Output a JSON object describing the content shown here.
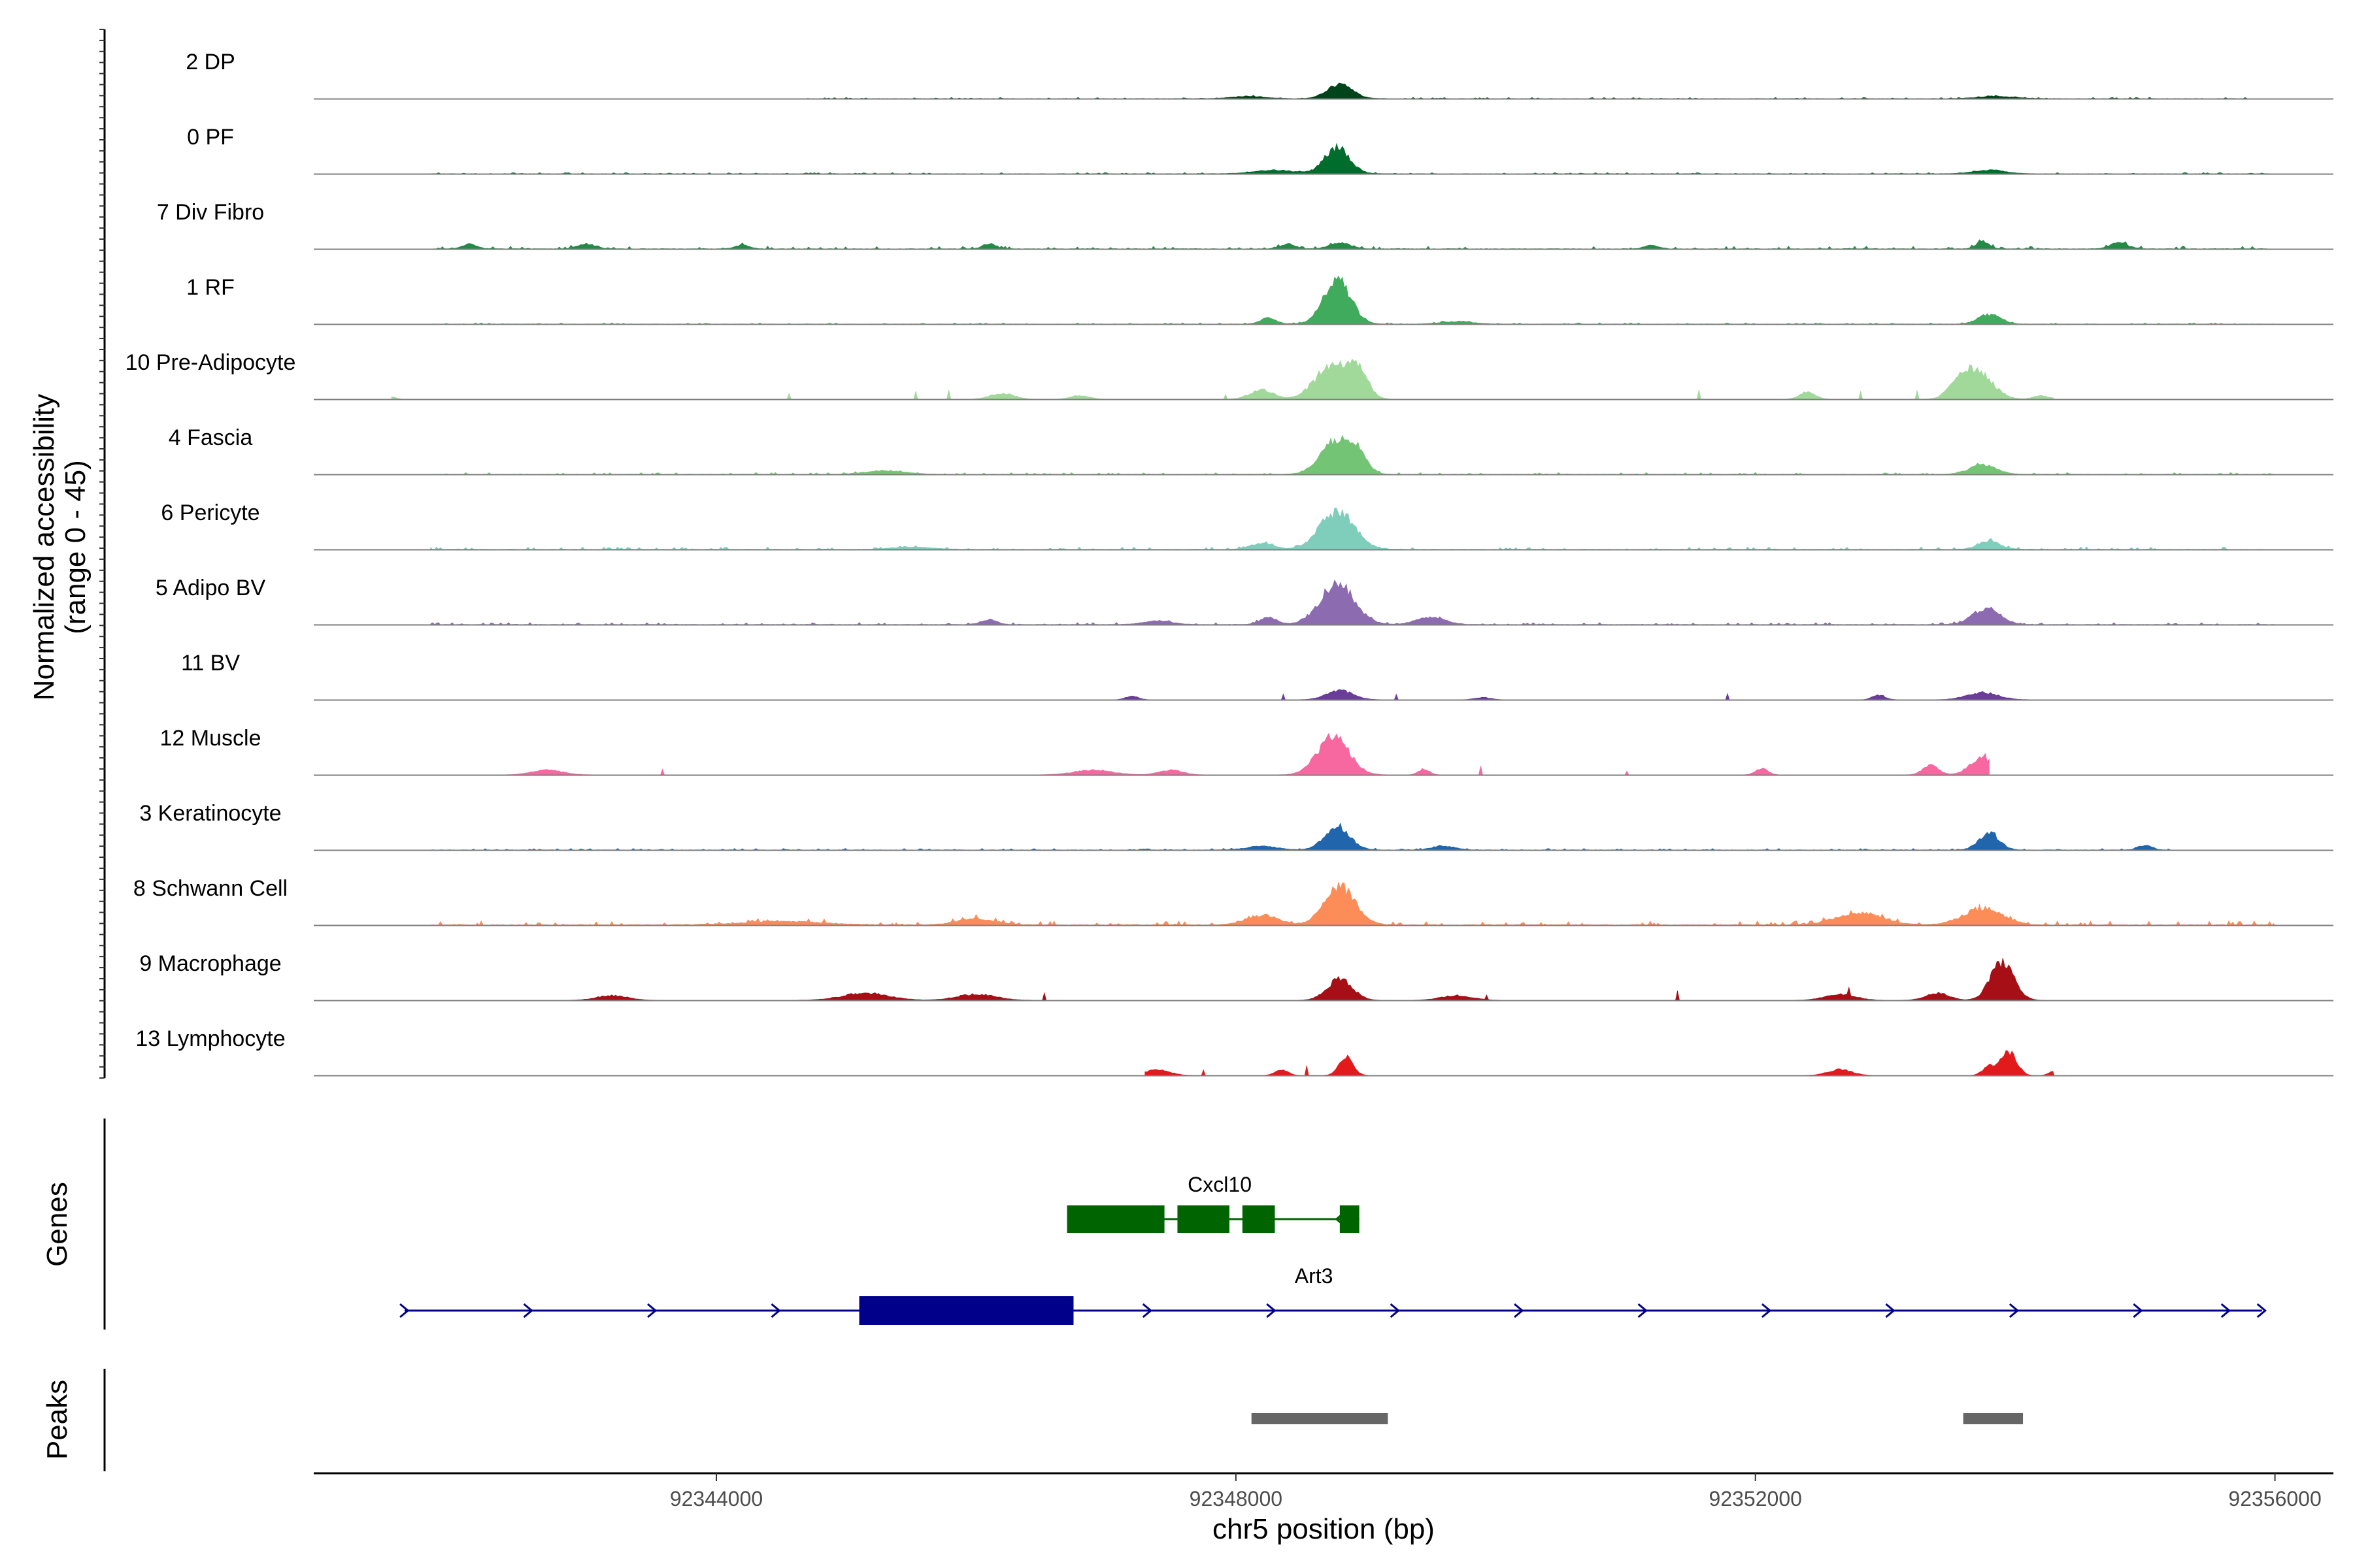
{
  "chart_data": {
    "type": "area",
    "xlabel": "chr5 position (bp)",
    "ylabel": "Normalized accessibility\n(range 0 - 45)",
    "ylabel_lines": [
      "Normalized accessibility",
      "(range 0 - 45)"
    ],
    "ylim": [
      0,
      45
    ],
    "xlim": [
      92340900,
      92356450
    ],
    "x_ticks": [
      92344000,
      92348000,
      92352000,
      92356000
    ],
    "x_tick_labels": [
      "92344000",
      "92348000",
      "92352000",
      "92356000"
    ],
    "panel_labels": {
      "genes": "Genes",
      "peaks": "Peaks"
    },
    "series": [
      {
        "name": "2 DP",
        "color": "#00441b",
        "peaks": [
          [
            92348800,
            12,
            160
          ],
          [
            92348100,
            2,
            200
          ],
          [
            92353850,
            2,
            220
          ]
        ],
        "extent": [
          92344700,
          92355800
        ],
        "sparse": false,
        "noise": 0.4
      },
      {
        "name": "0 PF",
        "color": "#006d2c",
        "peaks": [
          [
            92348780,
            22,
            160
          ],
          [
            92348300,
            3,
            250
          ],
          [
            92353800,
            3,
            200
          ]
        ],
        "extent": [
          92341800,
          92356000
        ],
        "sparse": false,
        "noise": 0.4
      },
      {
        "name": "7 Div Fibro",
        "color": "#238b45",
        "peaks": [
          [
            92342100,
            4,
            90
          ],
          [
            92343000,
            4,
            110
          ],
          [
            92344200,
            3,
            90
          ],
          [
            92346100,
            4,
            80
          ],
          [
            92348400,
            4,
            90
          ],
          [
            92348800,
            5,
            130
          ],
          [
            92353750,
            6,
            80
          ],
          [
            92354800,
            5,
            110
          ],
          [
            92351200,
            3,
            90
          ]
        ],
        "extent": [
          92341800,
          92355950
        ],
        "sparse": false,
        "noise": 0.9
      },
      {
        "name": "1 RF",
        "color": "#41ab5d",
        "peaks": [
          [
            92348780,
            38,
            170
          ],
          [
            92348250,
            5,
            100
          ],
          [
            92353800,
            8,
            140
          ],
          [
            92349700,
            2,
            200
          ]
        ],
        "extent": [
          92341800,
          92356000
        ],
        "sparse": false,
        "noise": 0.4
      },
      {
        "name": "10 Pre-Adipocyte",
        "color": "#a1d99b",
        "peaks": [
          [
            92348750,
            30,
            220
          ],
          [
            92348950,
            20,
            120
          ],
          [
            92348200,
            8,
            150
          ],
          [
            92353700,
            24,
            200
          ],
          [
            92353550,
            8,
            120
          ],
          [
            92352400,
            6,
            100
          ],
          [
            92346200,
            5,
            150
          ],
          [
            92346800,
            3,
            120
          ],
          [
            92354200,
            3,
            100
          ],
          [
            92341500,
            2,
            60
          ]
        ],
        "extent": [
          92341500,
          92354300
        ],
        "sparse": true,
        "noise": 1.5
      },
      {
        "name": "4 Fascia",
        "color": "#74c476",
        "peaks": [
          [
            92348780,
            30,
            200
          ],
          [
            92348950,
            12,
            100
          ],
          [
            92353750,
            8,
            170
          ],
          [
            92345300,
            3,
            250
          ]
        ],
        "extent": [
          92341800,
          92356000
        ],
        "sparse": false,
        "noise": 0.6
      },
      {
        "name": "6 Pericyte",
        "color": "#7fcdbb",
        "peaks": [
          [
            92348780,
            32,
            220
          ],
          [
            92348200,
            5,
            150
          ],
          [
            92353800,
            7,
            140
          ],
          [
            92345500,
            2,
            250
          ]
        ],
        "extent": [
          92341800,
          92356000
        ],
        "sparse": false,
        "noise": 0.8
      },
      {
        "name": "5 Adipo BV",
        "color": "#8c6bb1",
        "peaks": [
          [
            92348780,
            34,
            220
          ],
          [
            92348250,
            6,
            110
          ],
          [
            92349500,
            6,
            180
          ],
          [
            92353780,
            14,
            170
          ],
          [
            92346100,
            4,
            100
          ],
          [
            92347400,
            3,
            180
          ]
        ],
        "extent": [
          92341800,
          92356000
        ],
        "sparse": false,
        "noise": 0.7
      },
      {
        "name": "11 BV",
        "color": "#6a3d9a",
        "peaks": [
          [
            92348800,
            8,
            170
          ],
          [
            92353750,
            6,
            200
          ],
          [
            92352950,
            4,
            80
          ],
          [
            92347200,
            3,
            80
          ],
          [
            92349900,
            2,
            100
          ]
        ],
        "extent": [
          92347000,
          92354200
        ],
        "sparse": true,
        "noise": 1.0
      },
      {
        "name": "12 Muscle",
        "color": "#f768a1",
        "peaks": [
          [
            92348750,
            32,
            200
          ],
          [
            92349450,
            5,
            70
          ],
          [
            92353750,
            14,
            160
          ],
          [
            92353350,
            8,
            100
          ],
          [
            92352050,
            5,
            80
          ],
          [
            92346900,
            4,
            250
          ],
          [
            92342700,
            4,
            200
          ],
          [
            92347500,
            4,
            150
          ]
        ],
        "extent": [
          92341500,
          92353800
        ],
        "sparse": true,
        "noise": 1.3
      },
      {
        "name": "3 Keratinocyte",
        "color": "#2166ac",
        "peaks": [
          [
            92348780,
            20,
            160
          ],
          [
            92353800,
            14,
            130
          ],
          [
            92355000,
            4,
            90
          ],
          [
            92349600,
            3,
            150
          ],
          [
            92348200,
            3,
            200
          ]
        ],
        "extent": [
          92341800,
          92355200
        ],
        "sparse": false,
        "noise": 0.5
      },
      {
        "name": "8 Schwann Cell",
        "color": "#fc8d59",
        "peaks": [
          [
            92348800,
            32,
            200
          ],
          [
            92353750,
            14,
            250
          ],
          [
            92352800,
            10,
            300
          ],
          [
            92348200,
            8,
            200
          ],
          [
            92346000,
            5,
            250
          ],
          [
            92344500,
            3,
            500
          ]
        ],
        "extent": [
          92341800,
          92356000
        ],
        "sparse": false,
        "noise": 1.4
      },
      {
        "name": "9 Macrophage",
        "color": "#a50f15",
        "peaks": [
          [
            92353900,
            32,
            150
          ],
          [
            92348800,
            18,
            160
          ],
          [
            92349700,
            4,
            200
          ],
          [
            92353400,
            6,
            150
          ],
          [
            92352650,
            5,
            200
          ],
          [
            92345150,
            6,
            300
          ],
          [
            92346000,
            5,
            250
          ],
          [
            92343200,
            4,
            200
          ]
        ],
        "extent": [
          92341800,
          92354300
        ],
        "sparse": true,
        "noise": 1.4
      },
      {
        "name": "13 Lymphocyte",
        "color": "#e31a1c",
        "peaks": [
          [
            92348850,
            15,
            90
          ],
          [
            92353950,
            20,
            100
          ],
          [
            92353800,
            8,
            80
          ],
          [
            92347400,
            5,
            150
          ],
          [
            92348350,
            5,
            80
          ],
          [
            92352650,
            5,
            150
          ],
          [
            92354300,
            4,
            60
          ]
        ],
        "extent": [
          92347300,
          92354300
        ],
        "sparse": true,
        "noise": 1.8
      }
    ],
    "genes": [
      {
        "name": "Cxcl10",
        "color": "#006400",
        "strand": "-",
        "start": 92346700,
        "end": 92348950,
        "exons": [
          [
            92346700,
            92347450
          ],
          [
            92347550,
            92347950
          ],
          [
            92348050,
            92348300
          ],
          [
            92348800,
            92348950
          ]
        ]
      },
      {
        "name": "Art3",
        "color": "#00008b",
        "strand": "+",
        "start": 92341600,
        "end": 92355900,
        "exons": [
          [
            92345100,
            92346750
          ]
        ]
      }
    ],
    "peaks_regions": [
      [
        92348120,
        92349170
      ],
      [
        92353600,
        92354060
      ]
    ],
    "peak_color": "#666666",
    "grid": false
  }
}
